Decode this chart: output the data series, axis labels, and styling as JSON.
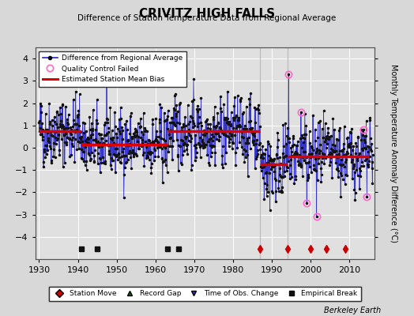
{
  "title": "CRIVITZ HIGH FALLS",
  "subtitle": "Difference of Station Temperature Data from Regional Average",
  "ylabel_right": "Monthly Temperature Anomaly Difference (°C)",
  "credit": "Berkeley Earth",
  "xlim": [
    1929,
    2016.5
  ],
  "ylim": [
    -5,
    4.5
  ],
  "yticks": [
    -4,
    -3,
    -2,
    -1,
    0,
    1,
    2,
    3,
    4
  ],
  "xticks": [
    1930,
    1940,
    1950,
    1960,
    1970,
    1980,
    1990,
    2000,
    2010
  ],
  "bg_color": "#d8d8d8",
  "plot_bg_color": "#e0e0e0",
  "grid_color": "#ffffff",
  "line_color": "#2222cc",
  "marker_color": "#111111",
  "bias_color": "#dd0000",
  "qc_color": "#ff66cc",
  "vline_color": "#aaaaaa",
  "station_move_years": [
    1987,
    1994,
    2000,
    2004,
    2009
  ],
  "empirical_break_years": [
    1941,
    1945,
    1963,
    1966
  ],
  "segment_bounds": [
    1930,
    1941,
    1963,
    1987,
    1994,
    2015
  ],
  "segment_biases": [
    0.75,
    0.15,
    0.75,
    -0.75,
    -0.4,
    -0.3
  ],
  "vline_years": [
    1987,
    1994
  ],
  "seed": 42
}
